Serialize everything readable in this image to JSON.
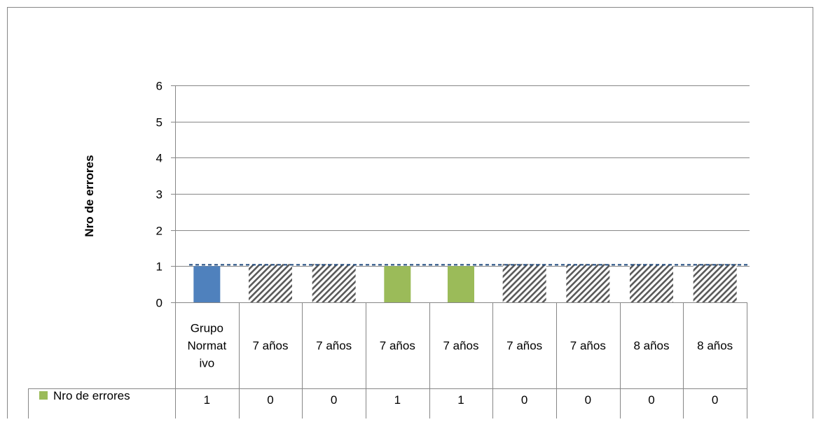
{
  "chart_data": {
    "type": "bar",
    "title": "",
    "xlabel": "",
    "ylabel": "Nro de errores",
    "ylim": [
      0,
      6
    ],
    "yticks": [
      0,
      1,
      2,
      3,
      4,
      5,
      6
    ],
    "grid": true,
    "legend_position": "data-table",
    "categories": [
      [
        "Grupo",
        "Normat",
        "ivo"
      ],
      [
        "7 años"
      ],
      [
        "7 años"
      ],
      [
        "7 años"
      ],
      [
        "7 años"
      ],
      [
        "7 años"
      ],
      [
        "7 años"
      ],
      [
        "8 años"
      ],
      [
        "8 años"
      ]
    ],
    "series": [
      {
        "name": "Nro de errores",
        "color": "#9bbb59",
        "values": [
          1,
          0,
          0,
          1,
          1,
          0,
          0,
          0,
          0
        ]
      }
    ],
    "bar_styles": [
      "solid-blue",
      "hatched",
      "hatched",
      "solid-green",
      "solid-green",
      "hatched",
      "hatched",
      "hatched",
      "hatched"
    ],
    "colors": {
      "blue": "#4f81bd",
      "green": "#9bbb59",
      "hatch": "#595959",
      "grid": "#878787",
      "reference_line": "#1f497d"
    },
    "reference_line": {
      "value": 1,
      "style": "dashed"
    }
  }
}
